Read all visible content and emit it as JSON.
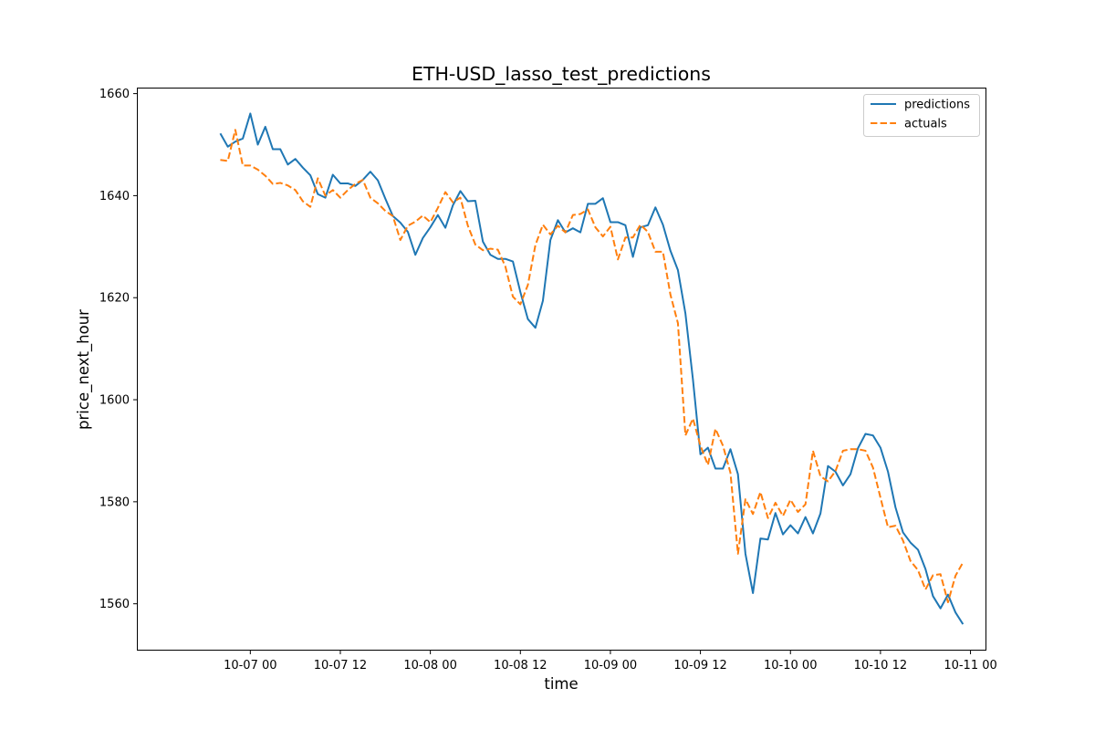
{
  "chart_data": {
    "type": "line",
    "title": "ETH-USD_lasso_test_predictions",
    "xlabel": "time",
    "ylabel": "price_next_hour",
    "xlim": [
      "2023-10-06 09:00",
      "2023-10-11 02:00"
    ],
    "ylim": [
      1551,
      1661
    ],
    "x_ticks": [
      {
        "x": "2023-10-07 00:00",
        "label": "10-07 00"
      },
      {
        "x": "2023-10-07 12:00",
        "label": "10-07 12"
      },
      {
        "x": "2023-10-08 00:00",
        "label": "10-08 00"
      },
      {
        "x": "2023-10-08 12:00",
        "label": "10-08 12"
      },
      {
        "x": "2023-10-09 00:00",
        "label": "10-09 00"
      },
      {
        "x": "2023-10-09 12:00",
        "label": "10-09 12"
      },
      {
        "x": "2023-10-10 00:00",
        "label": "10-10 00"
      },
      {
        "x": "2023-10-10 12:00",
        "label": "10-10 12"
      },
      {
        "x": "2023-10-11 00:00",
        "label": "10-11 00"
      }
    ],
    "y_ticks": [
      1560,
      1580,
      1600,
      1620,
      1640,
      1660
    ],
    "grid": false,
    "legend_position": "top-right",
    "series": [
      {
        "name": "predictions",
        "color": "#1f77b4",
        "style": "solid",
        "points": [
          [
            "2023-10-06 20:00",
            1652.2
          ],
          [
            "2023-10-06 21:00",
            1649.6
          ],
          [
            "2023-10-06 22:00",
            1650.6
          ],
          [
            "2023-10-06 23:00",
            1651.2
          ],
          [
            "2023-10-07 00:00",
            1656.1
          ],
          [
            "2023-10-07 01:00",
            1650.0
          ],
          [
            "2023-10-07 02:00",
            1653.5
          ],
          [
            "2023-10-07 03:00",
            1649.1
          ],
          [
            "2023-10-07 04:00",
            1649.1
          ],
          [
            "2023-10-07 05:00",
            1646.1
          ],
          [
            "2023-10-07 06:00",
            1647.2
          ],
          [
            "2023-10-07 07:00",
            1645.5
          ],
          [
            "2023-10-07 08:00",
            1644.0
          ],
          [
            "2023-10-07 09:00",
            1640.3
          ],
          [
            "2023-10-07 10:00",
            1639.6
          ],
          [
            "2023-10-07 11:00",
            1644.1
          ],
          [
            "2023-10-07 12:00",
            1642.4
          ],
          [
            "2023-10-07 13:00",
            1642.4
          ],
          [
            "2023-10-07 14:00",
            1641.9
          ],
          [
            "2023-10-07 15:00",
            1643.1
          ],
          [
            "2023-10-07 16:00",
            1644.7
          ],
          [
            "2023-10-07 17:00",
            1643.0
          ],
          [
            "2023-10-07 18:00",
            1639.4
          ],
          [
            "2023-10-07 19:00",
            1636.0
          ],
          [
            "2023-10-07 20:00",
            1634.7
          ],
          [
            "2023-10-07 21:00",
            1632.9
          ],
          [
            "2023-10-07 22:00",
            1628.4
          ],
          [
            "2023-10-07 23:00",
            1631.7
          ],
          [
            "2023-10-08 00:00",
            1633.8
          ],
          [
            "2023-10-08 01:00",
            1636.2
          ],
          [
            "2023-10-08 02:00",
            1633.7
          ],
          [
            "2023-10-08 03:00",
            1638.1
          ],
          [
            "2023-10-08 04:00",
            1640.9
          ],
          [
            "2023-10-08 05:00",
            1638.9
          ],
          [
            "2023-10-08 06:00",
            1639.0
          ],
          [
            "2023-10-08 07:00",
            1631.0
          ],
          [
            "2023-10-08 08:00",
            1628.4
          ],
          [
            "2023-10-08 09:00",
            1627.6
          ],
          [
            "2023-10-08 10:00",
            1627.6
          ],
          [
            "2023-10-08 11:00",
            1627.1
          ],
          [
            "2023-10-08 12:00",
            1621.1
          ],
          [
            "2023-10-08 13:00",
            1615.8
          ],
          [
            "2023-10-08 14:00",
            1614.1
          ],
          [
            "2023-10-08 15:00",
            1619.4
          ],
          [
            "2023-10-08 16:00",
            1631.3
          ],
          [
            "2023-10-08 17:00",
            1635.2
          ],
          [
            "2023-10-08 18:00",
            1632.8
          ],
          [
            "2023-10-08 19:00",
            1633.6
          ],
          [
            "2023-10-08 20:00",
            1632.8
          ],
          [
            "2023-10-08 21:00",
            1638.4
          ],
          [
            "2023-10-08 22:00",
            1638.4
          ],
          [
            "2023-10-08 23:00",
            1639.5
          ],
          [
            "2023-10-09 00:00",
            1634.8
          ],
          [
            "2023-10-09 01:00",
            1634.8
          ],
          [
            "2023-10-09 02:00",
            1634.2
          ],
          [
            "2023-10-09 03:00",
            1628.0
          ],
          [
            "2023-10-09 04:00",
            1633.8
          ],
          [
            "2023-10-09 05:00",
            1634.2
          ],
          [
            "2023-10-09 06:00",
            1637.7
          ],
          [
            "2023-10-09 07:00",
            1634.3
          ],
          [
            "2023-10-09 08:00",
            1629.2
          ],
          [
            "2023-10-09 09:00",
            1625.4
          ],
          [
            "2023-10-09 10:00",
            1616.9
          ],
          [
            "2023-10-09 11:00",
            1604.0
          ],
          [
            "2023-10-09 12:00",
            1589.3
          ],
          [
            "2023-10-09 13:00",
            1590.6
          ],
          [
            "2023-10-09 14:00",
            1586.5
          ],
          [
            "2023-10-09 15:00",
            1586.5
          ],
          [
            "2023-10-09 16:00",
            1590.3
          ],
          [
            "2023-10-09 17:00",
            1585.4
          ],
          [
            "2023-10-09 18:00",
            1569.8
          ],
          [
            "2023-10-09 19:00",
            1562.1
          ],
          [
            "2023-10-09 20:00",
            1572.8
          ],
          [
            "2023-10-09 21:00",
            1572.6
          ],
          [
            "2023-10-09 22:00",
            1577.8
          ],
          [
            "2023-10-09 23:00",
            1573.6
          ],
          [
            "2023-10-10 00:00",
            1575.4
          ],
          [
            "2023-10-10 01:00",
            1573.8
          ],
          [
            "2023-10-10 02:00",
            1577.0
          ],
          [
            "2023-10-10 03:00",
            1573.8
          ],
          [
            "2023-10-10 04:00",
            1577.7
          ],
          [
            "2023-10-10 05:00",
            1587.0
          ],
          [
            "2023-10-10 06:00",
            1585.9
          ],
          [
            "2023-10-10 07:00",
            1583.2
          ],
          [
            "2023-10-10 08:00",
            1585.4
          ],
          [
            "2023-10-10 09:00",
            1590.5
          ],
          [
            "2023-10-10 10:00",
            1593.3
          ],
          [
            "2023-10-10 11:00",
            1593.0
          ],
          [
            "2023-10-10 12:00",
            1590.6
          ],
          [
            "2023-10-10 13:00",
            1585.9
          ],
          [
            "2023-10-10 14:00",
            1578.9
          ],
          [
            "2023-10-10 15:00",
            1574.0
          ],
          [
            "2023-10-10 16:00",
            1572.0
          ],
          [
            "2023-10-10 17:00",
            1570.6
          ],
          [
            "2023-10-10 18:00",
            1566.8
          ],
          [
            "2023-10-10 19:00",
            1561.5
          ],
          [
            "2023-10-10 20:00",
            1559.1
          ],
          [
            "2023-10-10 21:00",
            1561.8
          ],
          [
            "2023-10-10 22:00",
            1558.3
          ],
          [
            "2023-10-10 23:00",
            1556.0
          ]
        ]
      },
      {
        "name": "actuals",
        "color": "#ff7f0e",
        "style": "dashed",
        "points": [
          [
            "2023-10-06 20:00",
            1647.0
          ],
          [
            "2023-10-06 21:00",
            1646.8
          ],
          [
            "2023-10-06 22:00",
            1652.9
          ],
          [
            "2023-10-06 23:00",
            1645.9
          ],
          [
            "2023-10-07 00:00",
            1645.9
          ],
          [
            "2023-10-07 01:00",
            1645.1
          ],
          [
            "2023-10-07 02:00",
            1643.9
          ],
          [
            "2023-10-07 03:00",
            1642.3
          ],
          [
            "2023-10-07 04:00",
            1642.5
          ],
          [
            "2023-10-07 05:00",
            1642.0
          ],
          [
            "2023-10-07 06:00",
            1641.1
          ],
          [
            "2023-10-07 07:00",
            1638.9
          ],
          [
            "2023-10-07 08:00",
            1637.8
          ],
          [
            "2023-10-07 09:00",
            1643.4
          ],
          [
            "2023-10-07 10:00",
            1640.0
          ],
          [
            "2023-10-07 11:00",
            1641.1
          ],
          [
            "2023-10-07 12:00",
            1639.6
          ],
          [
            "2023-10-07 13:00",
            1641.1
          ],
          [
            "2023-10-07 14:00",
            1642.3
          ],
          [
            "2023-10-07 15:00",
            1643.1
          ],
          [
            "2023-10-07 16:00",
            1639.6
          ],
          [
            "2023-10-07 17:00",
            1638.5
          ],
          [
            "2023-10-07 18:00",
            1637.0
          ],
          [
            "2023-10-07 19:00",
            1636.0
          ],
          [
            "2023-10-07 20:00",
            1631.3
          ],
          [
            "2023-10-07 21:00",
            1634.1
          ],
          [
            "2023-10-07 22:00",
            1634.9
          ],
          [
            "2023-10-07 23:00",
            1636.1
          ],
          [
            "2023-10-08 00:00",
            1634.8
          ],
          [
            "2023-10-08 01:00",
            1637.6
          ],
          [
            "2023-10-08 02:00",
            1640.7
          ],
          [
            "2023-10-08 03:00",
            1638.7
          ],
          [
            "2023-10-08 04:00",
            1639.6
          ],
          [
            "2023-10-08 05:00",
            1634.1
          ],
          [
            "2023-10-08 06:00",
            1630.4
          ],
          [
            "2023-10-08 07:00",
            1629.3
          ],
          [
            "2023-10-08 08:00",
            1629.6
          ],
          [
            "2023-10-08 09:00",
            1629.4
          ],
          [
            "2023-10-08 10:00",
            1626.1
          ],
          [
            "2023-10-08 11:00",
            1620.2
          ],
          [
            "2023-10-08 12:00",
            1618.7
          ],
          [
            "2023-10-08 13:00",
            1622.5
          ],
          [
            "2023-10-08 14:00",
            1630.3
          ],
          [
            "2023-10-08 15:00",
            1634.3
          ],
          [
            "2023-10-08 16:00",
            1632.4
          ],
          [
            "2023-10-08 17:00",
            1634.1
          ],
          [
            "2023-10-08 18:00",
            1632.8
          ],
          [
            "2023-10-08 19:00",
            1636.2
          ],
          [
            "2023-10-08 20:00",
            1636.4
          ],
          [
            "2023-10-08 21:00",
            1637.3
          ],
          [
            "2023-10-08 22:00",
            1633.8
          ],
          [
            "2023-10-08 23:00",
            1632.0
          ],
          [
            "2023-10-09 00:00",
            1633.9
          ],
          [
            "2023-10-09 01:00",
            1627.5
          ],
          [
            "2023-10-09 02:00",
            1631.8
          ],
          [
            "2023-10-09 03:00",
            1631.8
          ],
          [
            "2023-10-09 04:00",
            1634.3
          ],
          [
            "2023-10-09 05:00",
            1632.9
          ],
          [
            "2023-10-09 06:00",
            1629.0
          ],
          [
            "2023-10-09 07:00",
            1629.0
          ],
          [
            "2023-10-09 08:00",
            1620.6
          ],
          [
            "2023-10-09 09:00",
            1615.0
          ],
          [
            "2023-10-09 10:00",
            1593.0
          ],
          [
            "2023-10-09 11:00",
            1596.3
          ],
          [
            "2023-10-09 12:00",
            1591.0
          ],
          [
            "2023-10-09 13:00",
            1587.2
          ],
          [
            "2023-10-09 14:00",
            1594.3
          ],
          [
            "2023-10-09 15:00",
            1591.0
          ],
          [
            "2023-10-09 16:00",
            1585.7
          ],
          [
            "2023-10-09 17:00",
            1569.8
          ],
          [
            "2023-10-09 18:00",
            1580.5
          ],
          [
            "2023-10-09 19:00",
            1577.6
          ],
          [
            "2023-10-09 20:00",
            1581.9
          ],
          [
            "2023-10-09 21:00",
            1576.8
          ],
          [
            "2023-10-09 22:00",
            1579.8
          ],
          [
            "2023-10-09 23:00",
            1577.2
          ],
          [
            "2023-10-10 00:00",
            1580.4
          ],
          [
            "2023-10-10 01:00",
            1578.0
          ],
          [
            "2023-10-10 02:00",
            1579.5
          ],
          [
            "2023-10-10 03:00",
            1590.0
          ],
          [
            "2023-10-10 04:00",
            1585.0
          ],
          [
            "2023-10-10 05:00",
            1584.0
          ],
          [
            "2023-10-10 06:00",
            1586.0
          ],
          [
            "2023-10-10 07:00",
            1590.0
          ],
          [
            "2023-10-10 08:00",
            1590.3
          ],
          [
            "2023-10-10 09:00",
            1590.3
          ],
          [
            "2023-10-10 10:00",
            1590.0
          ],
          [
            "2023-10-10 11:00",
            1586.7
          ],
          [
            "2023-10-10 12:00",
            1580.8
          ],
          [
            "2023-10-10 13:00",
            1575.0
          ],
          [
            "2023-10-10 14:00",
            1575.3
          ],
          [
            "2023-10-10 15:00",
            1572.4
          ],
          [
            "2023-10-10 16:00",
            1568.4
          ],
          [
            "2023-10-10 17:00",
            1566.6
          ],
          [
            "2023-10-10 18:00",
            1562.8
          ],
          [
            "2023-10-10 19:00",
            1565.6
          ],
          [
            "2023-10-10 20:00",
            1565.8
          ],
          [
            "2023-10-10 21:00",
            1560.3
          ],
          [
            "2023-10-10 22:00",
            1565.5
          ],
          [
            "2023-10-10 23:00",
            1568.1
          ]
        ]
      }
    ]
  }
}
